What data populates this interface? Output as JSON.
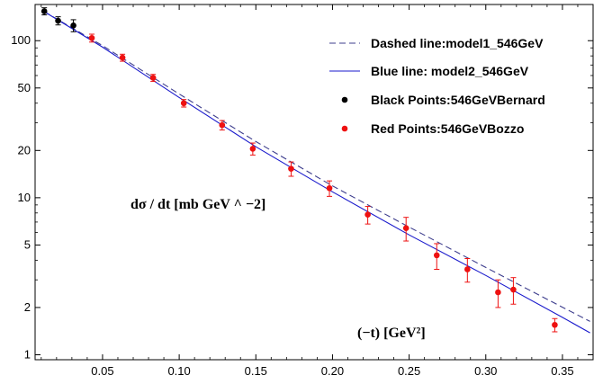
{
  "chart_data": {
    "type": "scatter",
    "xlabel": "(−t) [GeV²]",
    "ylabel": "dσ / dt [mb GeV ^ −2]",
    "xlim": [
      0.006,
      0.37
    ],
    "ylim": [
      0.93,
      170
    ],
    "yscale": "log",
    "grid": false,
    "legend_position": "top-right",
    "x_ticks": [
      0.05,
      0.1,
      0.15,
      0.2,
      0.25,
      0.3,
      0.35
    ],
    "x_tick_labels": [
      "0.05",
      "0.10",
      "0.15",
      "0.20",
      "0.25",
      "0.30",
      "0.35"
    ],
    "y_ticks": [
      1,
      2,
      5,
      10,
      20,
      50,
      100
    ],
    "y_tick_labels": [
      "1",
      "2",
      "5",
      "10",
      "20",
      "50",
      "100"
    ],
    "series": [
      {
        "name": "Dashed line:model1_546GeV",
        "kind": "line",
        "style": "dashed",
        "color": "#3c3c8c",
        "x": [
          0.012,
          0.05,
          0.1,
          0.15,
          0.2,
          0.25,
          0.3,
          0.35,
          0.368
        ],
        "y": [
          153,
          93,
          45.8,
          22.8,
          11.9,
          6.5,
          3.6,
          2.01,
          1.63
        ]
      },
      {
        "name": "Blue line: model2_546GeV",
        "kind": "line",
        "style": "solid",
        "color": "#1a1acc",
        "x": [
          0.012,
          0.05,
          0.1,
          0.15,
          0.2,
          0.25,
          0.3,
          0.35,
          0.368
        ],
        "y": [
          153,
          91,
          43.5,
          21.1,
          10.9,
          5.8,
          3.2,
          1.73,
          1.38
        ]
      },
      {
        "name": "Black Points:546GeVBernard",
        "kind": "points",
        "color": "#000000",
        "x": [
          0.012,
          0.021,
          0.031
        ],
        "y": [
          154,
          134,
          125
        ],
        "err": [
          8,
          8,
          11
        ]
      },
      {
        "name": "Red Points:546GeVBozzo",
        "kind": "points",
        "color": "#ee1111",
        "x": [
          0.043,
          0.063,
          0.083,
          0.103,
          0.128,
          0.148,
          0.173,
          0.198,
          0.223,
          0.248,
          0.268,
          0.288,
          0.308,
          0.318,
          0.345
        ],
        "y": [
          104,
          78,
          58,
          40,
          29,
          20.5,
          15.3,
          11.5,
          7.8,
          6.4,
          4.3,
          3.5,
          2.5,
          2.6,
          1.55
        ],
        "err": [
          6,
          4,
          3,
          2.2,
          2.0,
          1.8,
          1.6,
          1.3,
          1.0,
          1.1,
          0.8,
          0.6,
          0.5,
          0.5,
          0.15
        ]
      }
    ]
  }
}
